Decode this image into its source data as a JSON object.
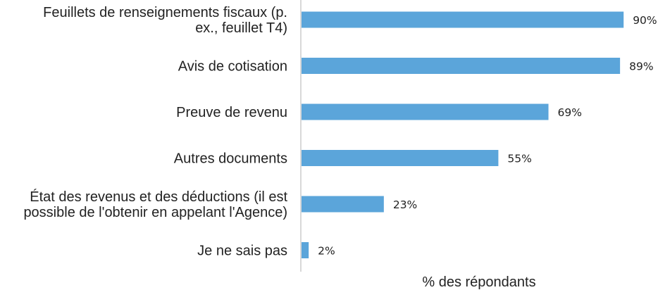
{
  "chart_data": {
    "type": "bar",
    "orientation": "horizontal",
    "categories": [
      [
        "Feuillets de renseignements fiscaux (p.",
        "ex., feuillet T4)"
      ],
      [
        "Avis de cotisation"
      ],
      [
        "Preuve de revenu"
      ],
      [
        "Autres documents"
      ],
      [
        "État des revenus et des déductions (il est",
        "possible de l'obtenir en appelant l'Agence)"
      ],
      [
        "Je ne sais pas"
      ]
    ],
    "values": [
      90,
      89,
      69,
      55,
      23,
      2
    ],
    "value_labels": [
      "90%",
      "89%",
      "69%",
      "55%",
      "23%",
      "2%"
    ],
    "xlabel": "% des répondants",
    "xlim": [
      0,
      100
    ],
    "bar_color": "#5BA5DA",
    "axis_color": "#cccccc",
    "grid": false,
    "legend": "none"
  }
}
